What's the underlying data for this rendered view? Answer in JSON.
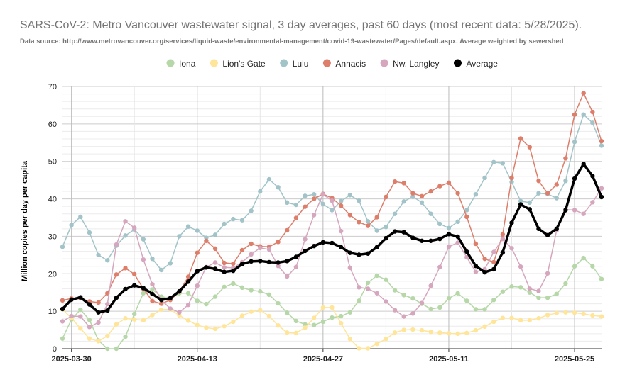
{
  "title": "SARS-CoV-2: Metro Vancouver wastewater signal, 3 day averages, past 60 days (most recent data: 5/28/2025).",
  "subtitle": "Data source: http://www.metrovancouver.org/services/liquid-waste/environmental-management/covid-19-wastewater/Pages/default.aspx. Average weighted by sewershed",
  "chart_data": {
    "type": "line",
    "ylabel": "Million copies per day per capita",
    "ylim": [
      0,
      70
    ],
    "yticks": [
      0,
      10,
      20,
      30,
      40,
      50,
      60,
      70
    ],
    "x_start": "2025-03-29",
    "x_end": "2025-05-28",
    "xticks": [
      "2025-03-30",
      "2025-04-13",
      "2025-04-27",
      "2025-05-11",
      "2025-05-25"
    ],
    "grid": true,
    "legend_position": "top",
    "series": [
      {
        "name": "Iona",
        "color": "#b6d7a8",
        "width": 1.5,
        "values": [
          2.7,
          7.8,
          10.4,
          7.7,
          2.2,
          0,
          0,
          3.2,
          9.3,
          14.8,
          15.8,
          13.9,
          13.3,
          14.8,
          14.8,
          12.8,
          11.9,
          13.9,
          16.5,
          17.4,
          16.3,
          15.6,
          15.3,
          14.4,
          12.1,
          9.6,
          7.4,
          6.5,
          6.3,
          7.2,
          8.3,
          8.7,
          9.7,
          12.8,
          17.6,
          19.5,
          18.4,
          15.6,
          14.3,
          13.4,
          12.0,
          10.6,
          11.0,
          13.4,
          14.8,
          12.8,
          10.5,
          10.5,
          13.0,
          15.2,
          16.6,
          16.4,
          15.0,
          13.6,
          13.6,
          14.6,
          17.4,
          22.0,
          24.2,
          22.0,
          18.6
        ]
      },
      {
        "name": "Lion's Gate",
        "color": "#ffe599",
        "width": 1.5,
        "values": [
          10.5,
          8.2,
          5.4,
          2.7,
          2.0,
          3.4,
          6.5,
          8.1,
          7.8,
          7.6,
          9.0,
          10.4,
          10.5,
          8.9,
          7.5,
          6.3,
          5.6,
          5.3,
          6.0,
          7.2,
          8.8,
          9.9,
          10.3,
          8.7,
          6.2,
          4.3,
          4.2,
          5.6,
          8.2,
          11.0,
          11.0,
          6.8,
          2.6,
          0.1,
          0.1,
          1.3,
          2.6,
          4.3,
          5.0,
          5.1,
          4.9,
          4.5,
          4.3,
          4.1,
          4.0,
          4.2,
          4.9,
          5.9,
          7.2,
          8.2,
          8.2,
          7.6,
          7.6,
          8.1,
          9.0,
          9.5,
          9.7,
          9.6,
          9.3,
          8.9,
          8.6
        ]
      },
      {
        "name": "Lulu",
        "color": "#a2c4c9",
        "width": 1.5,
        "values": [
          27.2,
          33.0,
          35.2,
          31.0,
          25.0,
          23.6,
          27.5,
          30.2,
          31.8,
          29.2,
          24.0,
          21.0,
          22.8,
          30.0,
          32.6,
          31.5,
          29.6,
          30.4,
          33.3,
          34.6,
          34.3,
          36.8,
          42.0,
          45.2,
          43.1,
          39.0,
          38.4,
          40.8,
          41.2,
          38.6,
          37.0,
          39.4,
          41.0,
          39.5,
          34.0,
          31.5,
          32.5,
          36.0,
          39.3,
          40.6,
          39.0,
          36.0,
          33.3,
          32.2,
          33.9,
          37.0,
          41.2,
          45.6,
          49.8,
          49.5,
          44.5,
          39.4,
          39.0,
          41.5,
          41.3,
          40.2,
          44.8,
          55.2,
          62.5,
          60.3,
          54.2
        ]
      },
      {
        "name": "Annacis",
        "color": "#dd7e6b",
        "width": 1.5,
        "values": [
          12.9,
          13.4,
          13.5,
          12.6,
          12.3,
          14.8,
          19.8,
          21.5,
          19.9,
          16.0,
          12.7,
          12.0,
          13.0,
          15.2,
          19.2,
          25.6,
          28.8,
          26.7,
          22.9,
          22.7,
          26.3,
          28.0,
          27.3,
          27.2,
          28.5,
          31.6,
          34.9,
          37.9,
          40.0,
          41.3,
          40.2,
          38.2,
          35.7,
          33.8,
          32.8,
          35.1,
          40.5,
          44.6,
          44.2,
          41.5,
          40.7,
          42.0,
          43.4,
          44.3,
          41.5,
          35.2,
          28.0,
          24.0,
          23.1,
          30.5,
          45.6,
          56.1,
          53.8,
          44.8,
          41.5,
          43.8,
          50.8,
          62.5,
          68.2,
          63.2,
          55.4
        ]
      },
      {
        "name": "Nw. Langley",
        "color": "#d5a6bd",
        "width": 1.5,
        "values": [
          7.3,
          8.7,
          8.6,
          5.8,
          7.0,
          11.9,
          27.8,
          34.0,
          32.3,
          23.8,
          17.2,
          13.0,
          10.7,
          9.7,
          11.7,
          16.8,
          21.8,
          23.0,
          21.7,
          21.6,
          23.1,
          25.2,
          26.9,
          26.5,
          22.1,
          19.3,
          21.8,
          29.2,
          35.7,
          41.2,
          39.5,
          31.4,
          21.6,
          16.4,
          16.0,
          14.8,
          12.6,
          10.3,
          8.6,
          9.4,
          12.2,
          16.8,
          21.8,
          27.2,
          28.3,
          24.4,
          20.5,
          21.2,
          25.8,
          29.3,
          26.8,
          21.9,
          16.0,
          15.4,
          20.1,
          31.6,
          37.1,
          37.0,
          36.0,
          39.1,
          42.8
        ]
      },
      {
        "name": "Average",
        "color": "#000000",
        "width": 3.5,
        "values": [
          10.6,
          13.1,
          13.7,
          11.8,
          9.7,
          10.2,
          13.6,
          15.9,
          16.9,
          16.2,
          14.6,
          13.0,
          13.5,
          15.3,
          17.9,
          20.7,
          21.7,
          21.3,
          20.5,
          20.8,
          22.6,
          23.3,
          23.4,
          23.1,
          23.0,
          23.4,
          24.5,
          26.1,
          27.4,
          28.4,
          28.2,
          27.1,
          25.6,
          25.1,
          25.4,
          27.1,
          29.5,
          31.3,
          31.1,
          29.6,
          28.8,
          28.8,
          29.3,
          30.6,
          29.9,
          25.9,
          22.1,
          20.4,
          21.2,
          25.7,
          33.6,
          38.5,
          37.2,
          32.0,
          30.3,
          32.0,
          37.0,
          45.4,
          49.3,
          46.1,
          40.5
        ]
      }
    ]
  }
}
